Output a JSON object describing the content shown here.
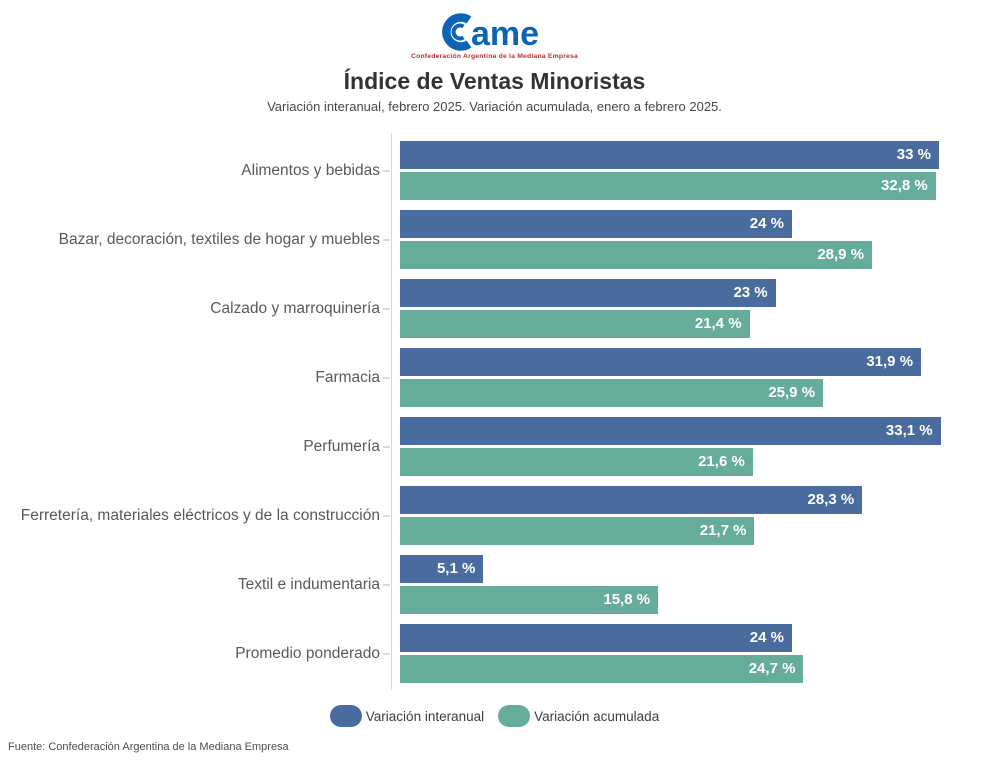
{
  "header": {
    "logo": {
      "text": "ame",
      "caption": "Confederación Argentina de la Mediana Empresa",
      "color": "#0d63b5",
      "caption_color": "#b5332b"
    },
    "title": "Índice de Ventas Minoristas",
    "subtitle": "Variación interanual, febrero 2025. Variación acumulada, enero a febrero 2025."
  },
  "chart_data": {
    "type": "bar",
    "orientation": "horizontal",
    "title": "Índice de Ventas Minoristas",
    "subtitle": "Variación interanual, febrero 2025. Variación acumulada, enero a febrero 2025.",
    "xmax": 36,
    "grid": false,
    "legend_position": "bottom",
    "axis_line_color": "#d9d9d9",
    "value_suffix": " %",
    "categories": [
      "Alimentos y bebidas",
      "Bazar, decoración, textiles de hogar y muebles",
      "Calzado y marroquinería",
      "Farmacia",
      "Perfumería",
      "Ferretería, materiales eléctricos y de la construcción",
      "Textil e indumentaria",
      "Promedio ponderado"
    ],
    "series": [
      {
        "name": "Variación interanual",
        "color": "#4a6b9e",
        "values": [
          33,
          24,
          23,
          31.9,
          33.1,
          28.3,
          5.1,
          24
        ],
        "labels": [
          "33 %",
          "24 %",
          "23 %",
          "31,9 %",
          "33,1 %",
          "28,3 %",
          "5,1 %",
          "24 %"
        ]
      },
      {
        "name": "Variación acumulada",
        "color": "#66ac9b",
        "values": [
          32.8,
          28.9,
          21.4,
          25.9,
          21.6,
          21.7,
          15.8,
          24.7
        ],
        "labels": [
          "32,8 %",
          "28,9 %",
          "21,4 %",
          "25,9 %",
          "21,6 %",
          "21,7 %",
          "15,8 %",
          "24,7 %"
        ]
      }
    ]
  },
  "footer": {
    "source": "Fuente: Confederación Argentina de la Mediana Empresa"
  }
}
